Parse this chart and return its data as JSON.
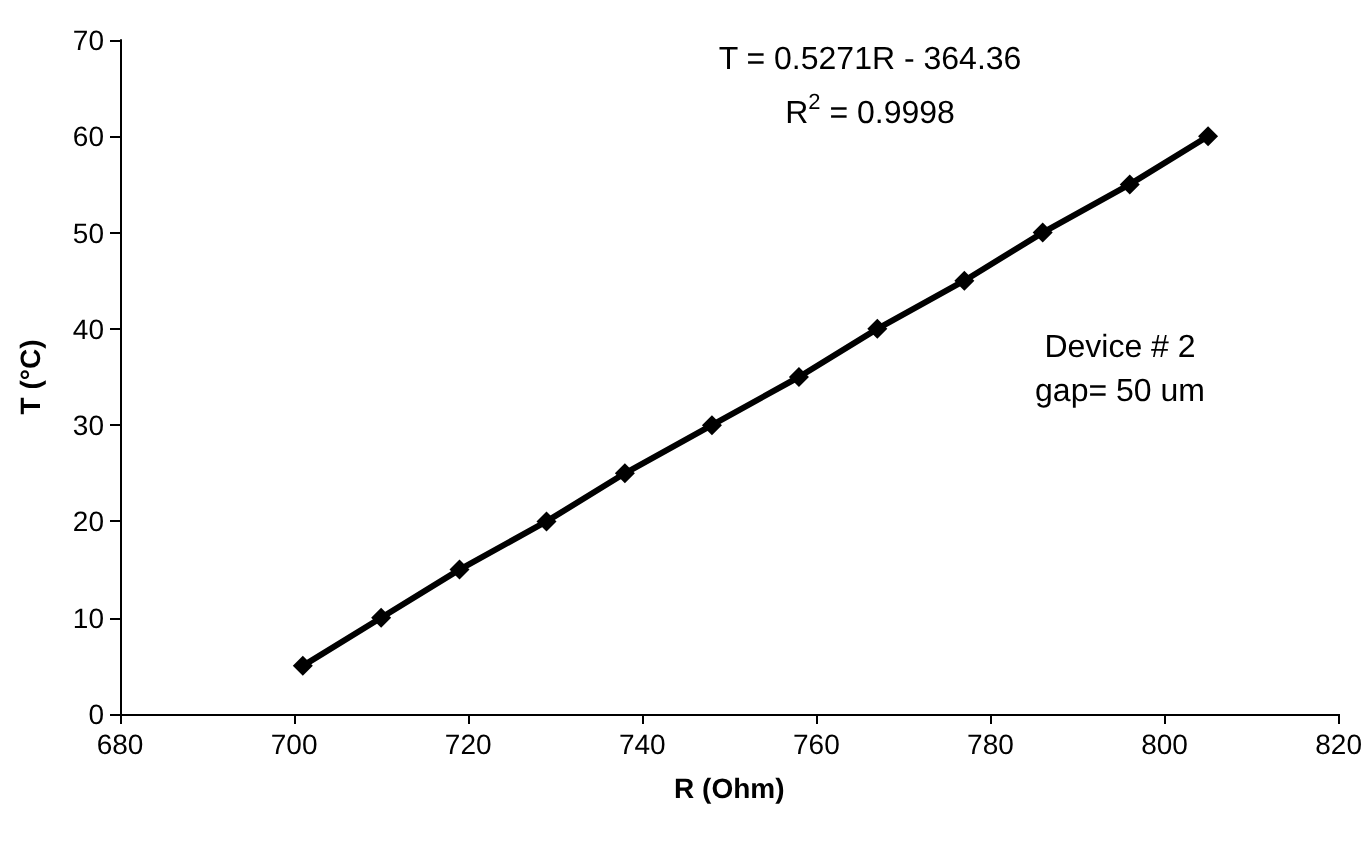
{
  "chart_data": {
    "type": "line",
    "xlabel": "R (Ohm)",
    "ylabel": "T (°C)",
    "x": [
      701,
      710,
      719,
      729,
      738,
      748,
      758,
      767,
      777,
      786,
      796,
      805
    ],
    "series": [
      {
        "color": "#000000",
        "values": [
          5,
          10,
          15,
          20,
          25,
          30,
          35,
          40,
          45,
          50,
          55,
          60
        ]
      }
    ],
    "xlim": [
      680,
      820
    ],
    "xticks": [
      680,
      700,
      720,
      740,
      760,
      780,
      800,
      820
    ],
    "ylim": [
      0,
      70
    ],
    "yticks": [
      0,
      10,
      20,
      30,
      40,
      50,
      60,
      70
    ],
    "grid": false,
    "marker": "diamond",
    "line_style": "solid",
    "annotations": [
      "T = 0.5271R - 364.36",
      "R$^{2}$ = 0.9998",
      "Device # 2\ngap= 50 um"
    ]
  }
}
